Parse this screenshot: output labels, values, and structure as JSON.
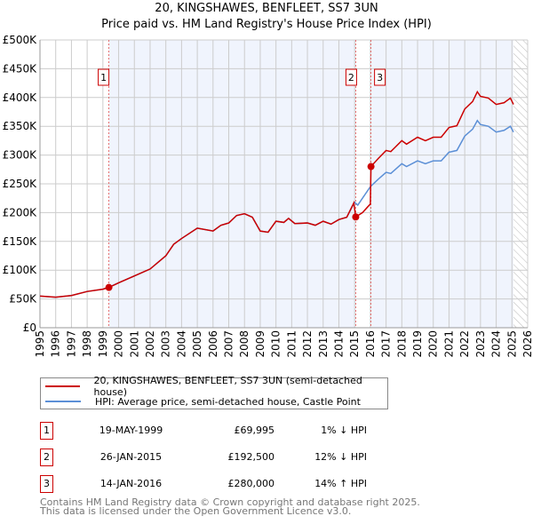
{
  "chart_data": {
    "type": "line",
    "title": "20, KINGSHAWES, BENFLEET, SS7 3UN",
    "subtitle": "Price paid vs. HM Land Registry's House Price Index (HPI)",
    "xlim": [
      1995,
      2026
    ],
    "ylim": [
      0,
      500000
    ],
    "y_ticks": [
      0,
      50000,
      100000,
      150000,
      200000,
      250000,
      300000,
      350000,
      400000,
      450000,
      500000
    ],
    "y_tick_labels": [
      "£0",
      "£50K",
      "£100K",
      "£150K",
      "£200K",
      "£250K",
      "£300K",
      "£350K",
      "£400K",
      "£450K",
      "£500K"
    ],
    "x_ticks": [
      "1995",
      "1996",
      "1997",
      "1998",
      "1999",
      "2000",
      "2001",
      "2002",
      "2003",
      "2004",
      "2005",
      "2006",
      "2007",
      "2008",
      "2009",
      "2010",
      "2011",
      "2012",
      "2013",
      "2014",
      "2015",
      "2016",
      "2017",
      "2018",
      "2019",
      "2020",
      "2021",
      "2022",
      "2023",
      "2024",
      "2025",
      "2026"
    ],
    "grid": true,
    "forecast_start": 2025.1,
    "series": [
      {
        "name": "HPI: Average price, semi-detached house, Castle Point",
        "color": "#5b8fd6",
        "x": [
          1995,
          1996,
          1997,
          1998,
          1999,
          1999.4,
          2000,
          2001,
          2002,
          2003,
          2003.5,
          2004,
          2005,
          2006,
          2006.5,
          2007,
          2007.5,
          2008,
          2008.5,
          2009,
          2009.5,
          2010,
          2010.5,
          2010.8,
          2011.2,
          2012,
          2012.5,
          2013,
          2013.5,
          2014,
          2014.5,
          2015,
          2015.2,
          2016,
          2016.5,
          2017,
          2017.3,
          2018,
          2018.3,
          2019,
          2019.5,
          2020,
          2020.5,
          2021,
          2021.5,
          2022,
          2022.5,
          2022.8,
          2023,
          2023.5,
          2024,
          2024.5,
          2024.9,
          2025.1
        ],
        "y": [
          55000,
          53000,
          56000,
          63000,
          67000,
          70700,
          78000,
          90000,
          102000,
          125000,
          145000,
          155000,
          173000,
          168000,
          178000,
          182000,
          195000,
          198000,
          192000,
          168000,
          166000,
          185000,
          183000,
          190000,
          181000,
          182000,
          178000,
          185000,
          180000,
          188000,
          192000,
          218000,
          213000,
          245000,
          258000,
          270000,
          268000,
          285000,
          280000,
          290000,
          285000,
          290000,
          290000,
          305000,
          308000,
          333000,
          345000,
          360000,
          353000,
          350000,
          340000,
          343000,
          350000,
          340000
        ]
      },
      {
        "name": "20, KINGSHAWES, BENFLEET, SS7 3UN (semi-detached house)",
        "color": "#cc0000",
        "x": [
          1995,
          1996,
          1997,
          1998,
          1999,
          1999.38,
          2000,
          2001,
          2002,
          2003,
          2003.5,
          2004,
          2005,
          2006,
          2006.5,
          2007,
          2007.5,
          2008,
          2008.5,
          2009,
          2009.5,
          2010,
          2010.5,
          2010.8,
          2011.2,
          2012,
          2012.5,
          2013,
          2013.5,
          2014,
          2014.5,
          2014.95,
          2015.07,
          2015.5,
          2016.0,
          2016.04,
          2016.5,
          2017,
          2017.3,
          2018,
          2018.3,
          2019,
          2019.5,
          2020,
          2020.5,
          2021,
          2021.5,
          2022,
          2022.5,
          2022.8,
          2023,
          2023.5,
          2024,
          2024.5,
          2024.9,
          2025.1
        ],
        "y": [
          55000,
          53000,
          56000,
          63000,
          67000,
          69995,
          78000,
          90000,
          102000,
          125000,
          145000,
          155000,
          173000,
          168000,
          178000,
          182000,
          195000,
          198000,
          192000,
          168000,
          166000,
          185000,
          183000,
          190000,
          181000,
          182000,
          178000,
          185000,
          180000,
          188000,
          192000,
          217000,
          192500,
          200000,
          215000,
          280000,
          294000,
          308000,
          306000,
          325000,
          319000,
          331000,
          325000,
          331000,
          331000,
          348000,
          351000,
          380000,
          393000,
          410000,
          402000,
          399000,
          388000,
          391000,
          399000,
          388000
        ]
      }
    ],
    "sales": [
      {
        "id": "1",
        "x": 1999.38,
        "y": 69995,
        "date": "19-MAY-1999",
        "price": "£69,995",
        "hpi": "1% ↓ HPI"
      },
      {
        "id": "2",
        "x": 2015.07,
        "y": 192500,
        "date": "26-JAN-2015",
        "price": "£192,500",
        "hpi": "12% ↓ HPI"
      },
      {
        "id": "3",
        "x": 2016.04,
        "y": 280000,
        "date": "14-JAN-2016",
        "price": "£280,000",
        "hpi": "14% ↑ HPI"
      }
    ]
  },
  "legend": {
    "property": "20, KINGSHAWES, BENFLEET, SS7 3UN (semi-detached house)",
    "hpi": "HPI: Average price, semi-detached house, Castle Point"
  },
  "footer": {
    "line1": "Contains HM Land Registry data © Crown copyright and database right 2025.",
    "line2": "This data is licensed under the Open Government Licence v3.0."
  }
}
